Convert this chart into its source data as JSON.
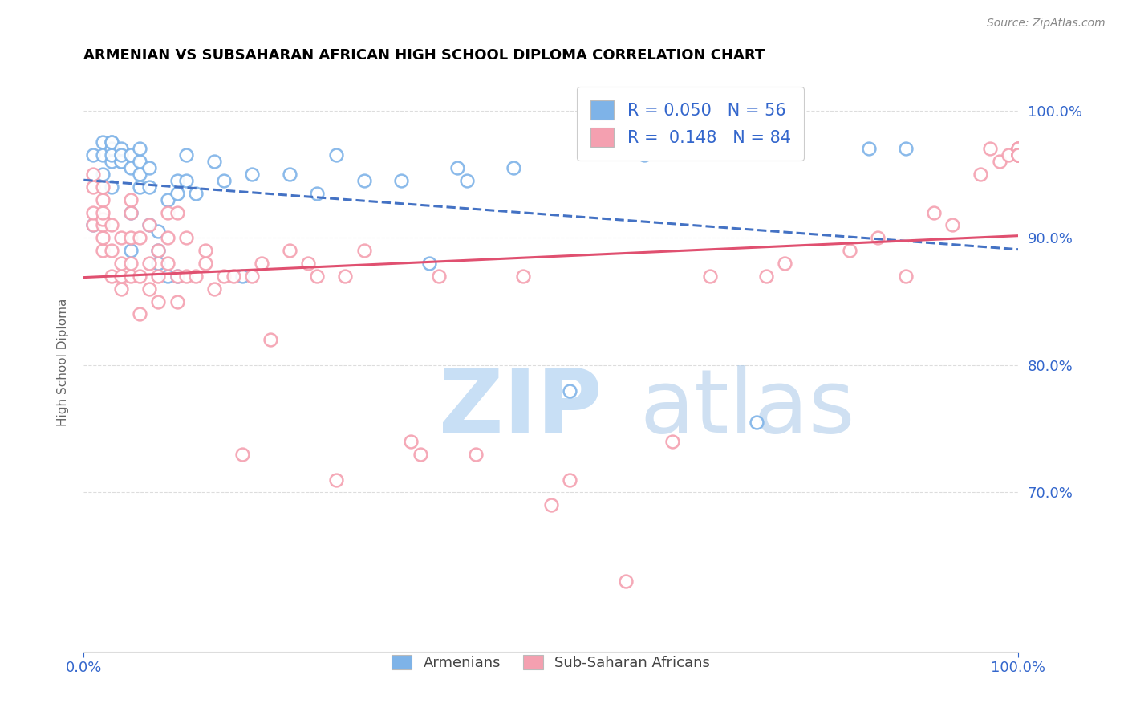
{
  "title": "ARMENIAN VS SUBSAHARAN AFRICAN HIGH SCHOOL DIPLOMA CORRELATION CHART",
  "source": "Source: ZipAtlas.com",
  "ylabel": "High School Diploma",
  "legend_label_armenian": "Armenians",
  "legend_label_subsaharan": "Sub-Saharan Africans",
  "r_armenian": 0.05,
  "n_armenian": 56,
  "r_subsaharan": 0.148,
  "n_subsaharan": 84,
  "xlim": [
    0.0,
    1.0
  ],
  "ylim": [
    0.575,
    1.03
  ],
  "ytick_positions": [
    0.7,
    0.8,
    0.9,
    1.0
  ],
  "ytick_labels": [
    "70.0%",
    "80.0%",
    "90.0%",
    "100.0%"
  ],
  "xtick_positions": [
    0.0,
    1.0
  ],
  "xtick_labels": [
    "0.0%",
    "100.0%"
  ],
  "color_armenian": "#7EB3E8",
  "color_subsaharan": "#F4A0B0",
  "trendline_color_armenian": "#4472C4",
  "trendline_color_subsaharan": "#E05070",
  "background_color": "#FFFFFF",
  "grid_color": "#DDDDDD",
  "tick_label_color": "#3366CC",
  "armenian_x": [
    0.01,
    0.01,
    0.02,
    0.02,
    0.02,
    0.03,
    0.03,
    0.03,
    0.03,
    0.03,
    0.03,
    0.04,
    0.04,
    0.04,
    0.04,
    0.04,
    0.05,
    0.05,
    0.05,
    0.05,
    0.06,
    0.06,
    0.06,
    0.06,
    0.07,
    0.07,
    0.07,
    0.08,
    0.08,
    0.08,
    0.09,
    0.09,
    0.1,
    0.1,
    0.1,
    0.11,
    0.11,
    0.12,
    0.14,
    0.15,
    0.17,
    0.18,
    0.22,
    0.25,
    0.27,
    0.3,
    0.34,
    0.37,
    0.4,
    0.41,
    0.46,
    0.52,
    0.6,
    0.72,
    0.84,
    0.88
  ],
  "armenian_y": [
    0.91,
    0.965,
    0.975,
    0.95,
    0.965,
    0.975,
    0.96,
    0.97,
    0.965,
    0.975,
    0.94,
    0.965,
    0.96,
    0.97,
    0.96,
    0.965,
    0.89,
    0.92,
    0.965,
    0.955,
    0.95,
    0.94,
    0.96,
    0.97,
    0.91,
    0.94,
    0.955,
    0.89,
    0.88,
    0.905,
    0.87,
    0.93,
    0.87,
    0.945,
    0.935,
    0.945,
    0.965,
    0.935,
    0.96,
    0.945,
    0.87,
    0.95,
    0.95,
    0.935,
    0.965,
    0.945,
    0.945,
    0.88,
    0.955,
    0.945,
    0.955,
    0.78,
    0.965,
    0.755,
    0.97,
    0.97
  ],
  "subsaharan_x": [
    0.01,
    0.01,
    0.01,
    0.01,
    0.02,
    0.02,
    0.02,
    0.02,
    0.02,
    0.02,
    0.02,
    0.03,
    0.03,
    0.03,
    0.04,
    0.04,
    0.04,
    0.04,
    0.05,
    0.05,
    0.05,
    0.05,
    0.05,
    0.06,
    0.06,
    0.06,
    0.07,
    0.07,
    0.07,
    0.08,
    0.08,
    0.08,
    0.09,
    0.09,
    0.09,
    0.1,
    0.1,
    0.1,
    0.11,
    0.11,
    0.12,
    0.13,
    0.13,
    0.14,
    0.15,
    0.16,
    0.17,
    0.18,
    0.19,
    0.2,
    0.22,
    0.24,
    0.25,
    0.27,
    0.28,
    0.3,
    0.35,
    0.36,
    0.38,
    0.42,
    0.47,
    0.5,
    0.52,
    0.58,
    0.63,
    0.67,
    0.73,
    0.75,
    0.82,
    0.85,
    0.88,
    0.91,
    0.93,
    0.96,
    0.97,
    0.98,
    0.99,
    1.0,
    1.0,
    1.0,
    1.0,
    1.0,
    1.0,
    1.0
  ],
  "subsaharan_y": [
    0.91,
    0.92,
    0.94,
    0.95,
    0.89,
    0.9,
    0.91,
    0.915,
    0.92,
    0.93,
    0.94,
    0.87,
    0.89,
    0.91,
    0.86,
    0.87,
    0.88,
    0.9,
    0.87,
    0.88,
    0.9,
    0.92,
    0.93,
    0.84,
    0.87,
    0.9,
    0.86,
    0.88,
    0.91,
    0.85,
    0.87,
    0.89,
    0.88,
    0.9,
    0.92,
    0.85,
    0.87,
    0.92,
    0.87,
    0.9,
    0.87,
    0.88,
    0.89,
    0.86,
    0.87,
    0.87,
    0.73,
    0.87,
    0.88,
    0.82,
    0.89,
    0.88,
    0.87,
    0.71,
    0.87,
    0.89,
    0.74,
    0.73,
    0.87,
    0.73,
    0.87,
    0.69,
    0.71,
    0.63,
    0.74,
    0.87,
    0.87,
    0.88,
    0.89,
    0.9,
    0.87,
    0.92,
    0.91,
    0.95,
    0.97,
    0.96,
    0.965,
    0.97,
    0.965,
    0.97,
    0.97,
    0.965,
    0.965,
    0.965
  ]
}
